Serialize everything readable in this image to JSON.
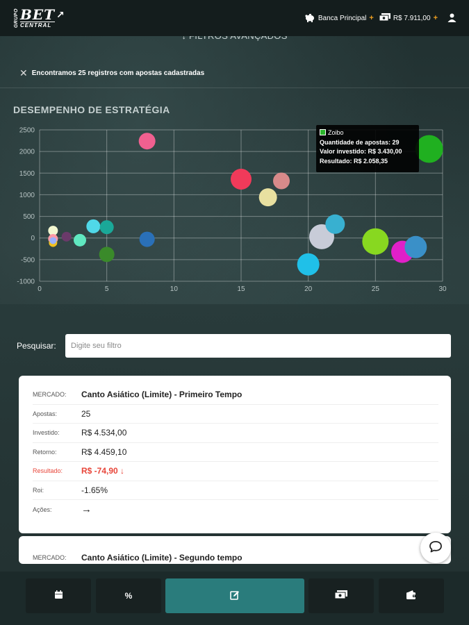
{
  "header": {
    "logo_small": "GRUPO",
    "logo_main": "BET",
    "logo_sub": "CENTRAL",
    "bank_label": "Banca Principal",
    "balance": "R$ 7.911,00",
    "plus": "+"
  },
  "filters": {
    "label": "FILTROS AVANÇADOS"
  },
  "notice": {
    "text": "Encontramos 25 registros com apostas cadastradas"
  },
  "chart_title": "DESEMPENHO DE ESTRATÉGIA",
  "chart_data": {
    "type": "scatter",
    "title": "DESEMPENHO DE ESTRATÉGIA",
    "xlim": [
      0,
      30
    ],
    "ylim": [
      -1000,
      2500
    ],
    "x_ticks": [
      0,
      5,
      10,
      15,
      20,
      25,
      30
    ],
    "y_ticks": [
      -1000,
      -500,
      0,
      500,
      1000,
      1500,
      2000,
      2500
    ],
    "grid": true,
    "points": [
      {
        "x": 1,
        "y": 170,
        "r": 7,
        "color": "#f2f7d0"
      },
      {
        "x": 1,
        "y": -20,
        "r": 7,
        "color": "#ff9aa6"
      },
      {
        "x": 1,
        "y": -110,
        "r": 6,
        "color": "#f0c020"
      },
      {
        "x": 1,
        "y": -60,
        "r": 5,
        "color": "#9ab0ff"
      },
      {
        "x": 2,
        "y": 30,
        "r": 7,
        "color": "#6a3a6a"
      },
      {
        "x": 3,
        "y": -50,
        "r": 9,
        "color": "#60e8c0"
      },
      {
        "x": 4,
        "y": 270,
        "r": 10,
        "color": "#50d8e8"
      },
      {
        "x": 5,
        "y": 250,
        "r": 10,
        "color": "#1aa898"
      },
      {
        "x": 5,
        "y": -380,
        "r": 11,
        "color": "#3a8a2a"
      },
      {
        "x": 8,
        "y": 2240,
        "r": 12,
        "color": "#f06090"
      },
      {
        "x": 8,
        "y": -30,
        "r": 11,
        "color": "#2a70b8"
      },
      {
        "x": 15,
        "y": 1360,
        "r": 15,
        "color": "#f03a5a"
      },
      {
        "x": 17,
        "y": 940,
        "r": 13,
        "color": "#e8e0a0"
      },
      {
        "x": 18,
        "y": 1320,
        "r": 12,
        "color": "#d88a8a"
      },
      {
        "x": 20,
        "y": -610,
        "r": 16,
        "color": "#20c0e8"
      },
      {
        "x": 21,
        "y": 30,
        "r": 18,
        "color": "#c8ccd8"
      },
      {
        "x": 22,
        "y": 320,
        "r": 14,
        "color": "#38b0d0"
      },
      {
        "x": 25,
        "y": -80,
        "r": 19,
        "color": "#88d820"
      },
      {
        "x": 27,
        "y": -320,
        "r": 16,
        "color": "#e020c8"
      },
      {
        "x": 28,
        "y": -210,
        "r": 16,
        "color": "#3a90c8"
      },
      {
        "x": 29,
        "y": 2058,
        "r": 20,
        "color": "#20b020"
      }
    ]
  },
  "tooltip": {
    "series": "Zoibo",
    "line1": "Quantidade de apostas: 29",
    "line2": "Valor investido: R$ 3.430,00",
    "line3": "Resultado: R$ 2.058,35"
  },
  "search": {
    "label": "Pesquisar:",
    "placeholder": "Digite seu filtro"
  },
  "cards": [
    {
      "mercado_label": "MERCADO:",
      "mercado": "Canto Asiático (Limite) - Primeiro Tempo",
      "apostas_label": "Apostas:",
      "apostas": "25",
      "investido_label": "Investido:",
      "investido": "R$ 4.534,00",
      "retorno_label": "Retorno:",
      "retorno": "R$ 4.459,10",
      "resultado_label": "Resultado:",
      "resultado": "R$ -74,90",
      "roi_label": "Roi:",
      "roi": "-1.65%",
      "acoes_label": "Ações:"
    },
    {
      "mercado_label": "MERCADO:",
      "mercado": "Canto Asiático (Limite) - Segundo tempo"
    }
  ],
  "colors": {
    "accent": "#2a7c7c",
    "negative": "#e8463a"
  }
}
